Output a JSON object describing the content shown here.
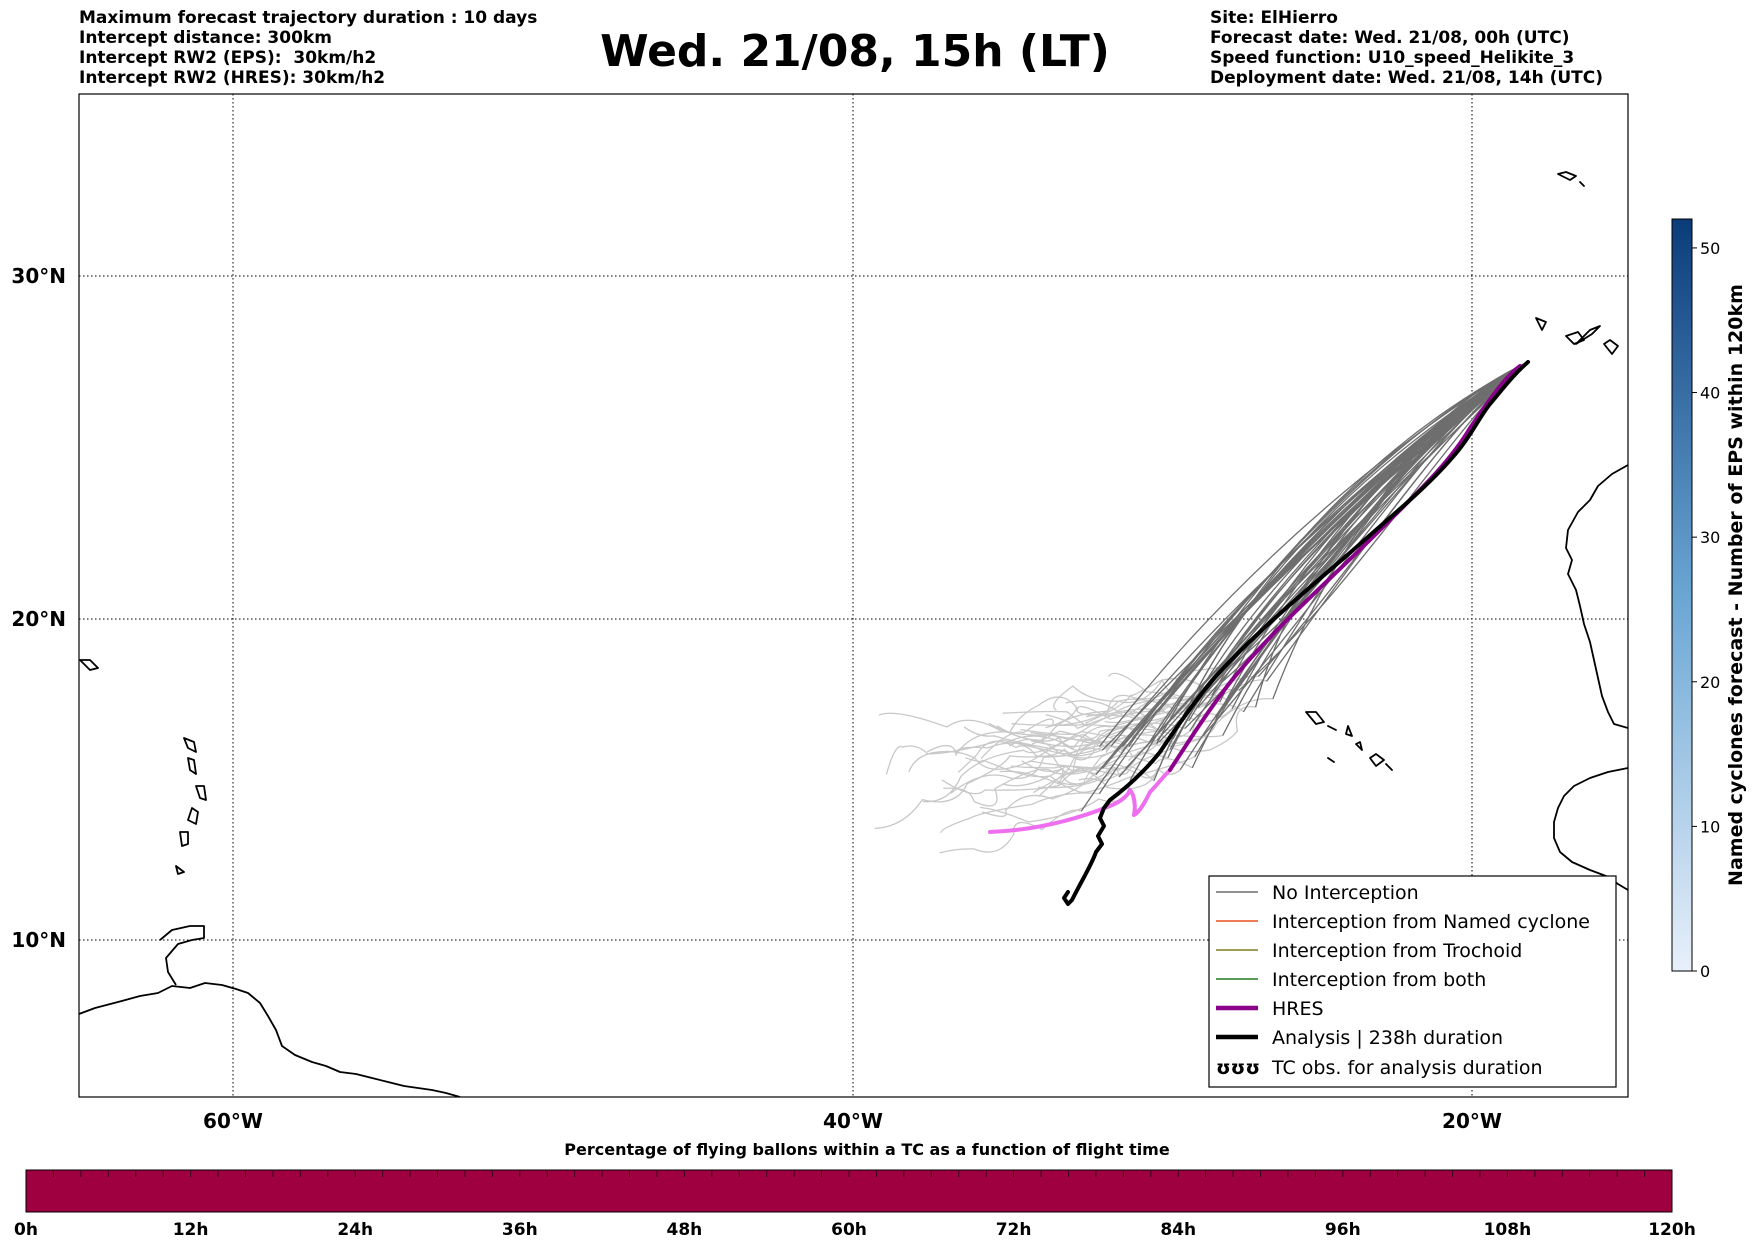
{
  "header": {
    "left_lines": [
      "Maximum forecast trajectory duration : 10 days",
      "Intercept distance: 300km",
      "Intercept RW2 (EPS):  30km/h2",
      "Intercept RW2 (HRES): 30km/h2"
    ],
    "title": "Wed. 21/08, 15h (LT)",
    "right_lines": [
      "Site: ElHierro",
      "Forecast date: Wed. 21/08, 00h (UTC)",
      "Speed function: U10_speed_Helikite_3",
      "Deployment date: Wed. 21/08, 14h (UTC)"
    ]
  },
  "map": {
    "lon_ticks": [
      "60°W",
      "40°W",
      "20°W"
    ],
    "lat_ticks": [
      "30°N",
      "20°N",
      "10°N"
    ],
    "extent": {
      "lon": [
        -65,
        -15
      ],
      "lat": [
        5.3,
        34.6
      ]
    },
    "grid": "dotted",
    "colors": {
      "no_interception": "#6e6e6e",
      "no_interception_late": "#c8c8c8",
      "named_cyclone": "#e8501c",
      "trochoid": "#7e7e20",
      "both": "#1f7a1f",
      "hres": "#8b008b",
      "hres_late": "#ee6ef0",
      "analysis": "#000000"
    }
  },
  "legend": {
    "items": [
      {
        "label": "No Interception",
        "style": "thin",
        "color": "#6e6e6e"
      },
      {
        "label": "Interception from Named cyclone",
        "style": "thin",
        "color": "#e8501c"
      },
      {
        "label": "Interception from Trochoid",
        "style": "thin",
        "color": "#7e7e20"
      },
      {
        "label": "Interception from both",
        "style": "thin",
        "color": "#1f7a1f"
      },
      {
        "label": "HRES",
        "style": "thick",
        "color": "#8b008b"
      },
      {
        "label": "Analysis | 238h duration",
        "style": "thick",
        "color": "#000000"
      },
      {
        "label": "TC obs. for analysis duration",
        "style": "symbol",
        "symbol": "ʊʊʊ",
        "color": "#000000"
      }
    ]
  },
  "right_colorbar": {
    "label": "Named cyclones forecast - Number of EPS within 120km",
    "ticks": [
      "0",
      "10",
      "20",
      "30",
      "40",
      "50"
    ],
    "range": [
      0,
      52
    ],
    "color_low": "#e8f0fa",
    "color_high": "#0b3c7a"
  },
  "bottom_colorbar": {
    "title": "Percentage of flying ballons within a TC as a function of flight time",
    "ticks": [
      "0h",
      "12h",
      "24h",
      "36h",
      "48h",
      "60h",
      "72h",
      "84h",
      "96h",
      "108h",
      "120h"
    ],
    "fill_color": "#9e0040"
  }
}
